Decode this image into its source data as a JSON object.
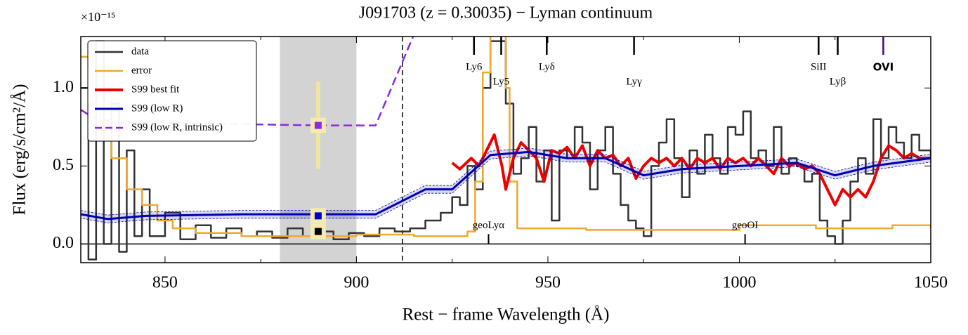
{
  "chart_data": {
    "type": "line",
    "title": "J091703 (z = 0.30035) − Lyman continuum",
    "x_label": "Rest − frame Wavelength (Å)",
    "y_label": "Flux (erg/s/cm²/Å)",
    "offset_text": "×10⁻¹⁵",
    "xlim": [
      828,
      1050
    ],
    "ylim": [
      -0.12,
      1.33
    ],
    "xticks": [
      850,
      900,
      950,
      1000,
      1050
    ],
    "xminor": [
      875,
      925,
      975,
      1025
    ],
    "yticks": [
      {
        "value": 0,
        "label": "0.0"
      },
      {
        "value": 0.5,
        "label": "0.5"
      },
      {
        "value": 1,
        "label": "1.0"
      }
    ],
    "shaded_region": [
      880,
      900
    ],
    "lyman_limit": 912,
    "series": [
      {
        "name": "data",
        "color": "#333333",
        "step": true,
        "x": [
          828,
          830,
          832,
          834,
          836,
          838,
          840,
          842,
          844,
          846,
          850,
          854,
          858,
          862,
          866,
          870,
          874,
          878,
          882,
          886,
          890,
          894,
          898,
          902,
          906,
          910,
          914,
          918,
          922,
          925,
          927,
          929,
          931,
          933,
          935,
          937,
          939,
          941,
          943,
          945,
          947,
          949,
          951,
          953,
          955,
          957,
          959,
          961,
          963,
          965,
          967,
          969,
          971,
          973,
          975,
          977,
          979,
          981,
          983,
          985,
          987,
          989,
          991,
          993,
          995,
          997,
          999,
          1001,
          1003,
          1005,
          1007,
          1009,
          1011,
          1013,
          1015,
          1017,
          1019,
          1021,
          1023,
          1025,
          1027,
          1029,
          1031,
          1033,
          1035,
          1037,
          1039,
          1041,
          1043,
          1045,
          1047,
          1050
        ],
        "values": [
          1.0,
          -0.1,
          1.3,
          0.0,
          0.9,
          -0.05,
          0.6,
          0.05,
          0.35,
          0.05,
          0.2,
          0.03,
          0.12,
          0.04,
          0.1,
          0.05,
          0.08,
          0.04,
          0.1,
          0.05,
          0.08,
          0.03,
          0.07,
          0.05,
          0.1,
          0.08,
          0.1,
          0.15,
          0.2,
          0.3,
          0.25,
          0.5,
          0.35,
          1.0,
          1.3,
          1.3,
          0.9,
          0.45,
          0.55,
          0.75,
          0.4,
          0.6,
          0.15,
          0.6,
          0.55,
          0.75,
          0.65,
          0.35,
          0.6,
          0.75,
          0.45,
          0.25,
          0.15,
          0.1,
          0.05,
          0.5,
          0.65,
          0.8,
          0.55,
          0.3,
          0.6,
          0.45,
          0.7,
          0.55,
          0.45,
          0.75,
          0.7,
          0.85,
          0.55,
          0.6,
          0.5,
          0.75,
          0.45,
          0.55,
          0.5,
          0.4,
          0.45,
          0.15,
          0.05,
          0.0,
          0.15,
          0.4,
          0.55,
          0.45,
          0.8,
          0.55,
          0.75,
          0.65,
          0.55,
          0.7,
          0.6,
          0.55
        ]
      },
      {
        "name": "error",
        "color": "#f0a830",
        "step": true,
        "x": [
          828,
          830,
          833,
          836,
          840,
          844,
          848,
          852,
          858,
          870,
          885,
          900,
          915,
          925,
          929,
          931,
          933,
          935,
          937,
          939,
          940,
          942,
          960,
          980,
          1000,
          1020,
          1030,
          1040,
          1050
        ],
        "values": [
          1.2,
          0.9,
          0.7,
          0.55,
          0.35,
          0.25,
          0.15,
          0.1,
          0.07,
          0.05,
          0.05,
          0.06,
          0.05,
          0.05,
          0.08,
          0.4,
          1.1,
          1.35,
          1.35,
          1.0,
          0.4,
          0.1,
          0.09,
          0.09,
          0.12,
          0.1,
          0.1,
          0.12,
          0.1
        ]
      },
      {
        "name": "S99 best fit",
        "color": "#ee0000",
        "width": 4,
        "x": [
          925,
          927,
          930,
          932,
          934,
          936,
          938,
          939,
          941,
          943,
          945,
          947,
          949,
          951,
          953,
          955,
          957,
          959,
          961,
          963,
          965,
          967,
          969,
          971,
          973,
          975,
          977,
          979,
          981,
          983,
          985,
          987,
          989,
          991,
          993,
          995,
          997,
          999,
          1001,
          1003,
          1005,
          1007,
          1009,
          1011,
          1013,
          1015,
          1017,
          1019,
          1021,
          1023,
          1025,
          1027,
          1029,
          1031,
          1033,
          1035,
          1037,
          1039,
          1041,
          1043,
          1045,
          1047,
          1050
        ],
        "values": [
          0.52,
          0.48,
          0.55,
          0.5,
          0.6,
          0.7,
          0.5,
          0.35,
          0.55,
          0.65,
          0.6,
          0.55,
          0.4,
          0.6,
          0.58,
          0.62,
          0.55,
          0.63,
          0.5,
          0.6,
          0.55,
          0.57,
          0.5,
          0.55,
          0.42,
          0.5,
          0.55,
          0.52,
          0.55,
          0.5,
          0.55,
          0.48,
          0.55,
          0.52,
          0.55,
          0.48,
          0.55,
          0.52,
          0.55,
          0.5,
          0.55,
          0.5,
          0.45,
          0.55,
          0.5,
          0.52,
          0.48,
          0.5,
          0.45,
          0.35,
          0.25,
          0.35,
          0.3,
          0.35,
          0.3,
          0.4,
          0.55,
          0.63,
          0.6,
          0.55,
          0.58,
          0.55,
          0.55
        ]
      },
      {
        "name": "S99 (low R)",
        "color": "#0000b0",
        "width": 3,
        "band": 0.025,
        "x": [
          828,
          835,
          845,
          870,
          905,
          918,
          925,
          935,
          945,
          955,
          965,
          975,
          985,
          1000,
          1015,
          1025,
          1035,
          1050
        ],
        "values": [
          0.19,
          0.16,
          0.18,
          0.19,
          0.19,
          0.35,
          0.35,
          0.57,
          0.59,
          0.55,
          0.55,
          0.44,
          0.48,
          0.5,
          0.52,
          0.44,
          0.5,
          0.55
        ]
      },
      {
        "name": "S99 (low R, intrinsic)",
        "color": "#8a2be2",
        "width": 2.5,
        "dashed": true,
        "x": [
          828,
          832,
          840,
          890,
          905,
          916
        ],
        "values": [
          0.86,
          0.8,
          0.78,
          0.76,
          0.76,
          1.4
        ]
      }
    ],
    "points": [
      {
        "x": 890,
        "value": 0.76,
        "error": 0.28,
        "color": "#8a2be2"
      },
      {
        "x": 890,
        "value": 0.18,
        "color": "#0000d0"
      },
      {
        "x": 890,
        "value": 0.08,
        "color": "#000000"
      }
    ],
    "lines": [
      {
        "label": "Ly6",
        "x": 930.7
      },
      {
        "label": "Ly5",
        "x": 937.8
      },
      {
        "label": "Lyδ",
        "x": 949.7
      },
      {
        "label": "Lyγ",
        "x": 972.5
      },
      {
        "label": "SiII",
        "x": 1020.7
      },
      {
        "label": "Lyβ",
        "x": 1025.7
      },
      {
        "label": "OVI",
        "x": 1037.6,
        "color": "#4b0082"
      }
    ],
    "geo_lines": [
      {
        "label": "geoLyα",
        "x": 934.5
      },
      {
        "label": "geoOI",
        "x": 1001.5
      }
    ],
    "legend": "upper left"
  }
}
